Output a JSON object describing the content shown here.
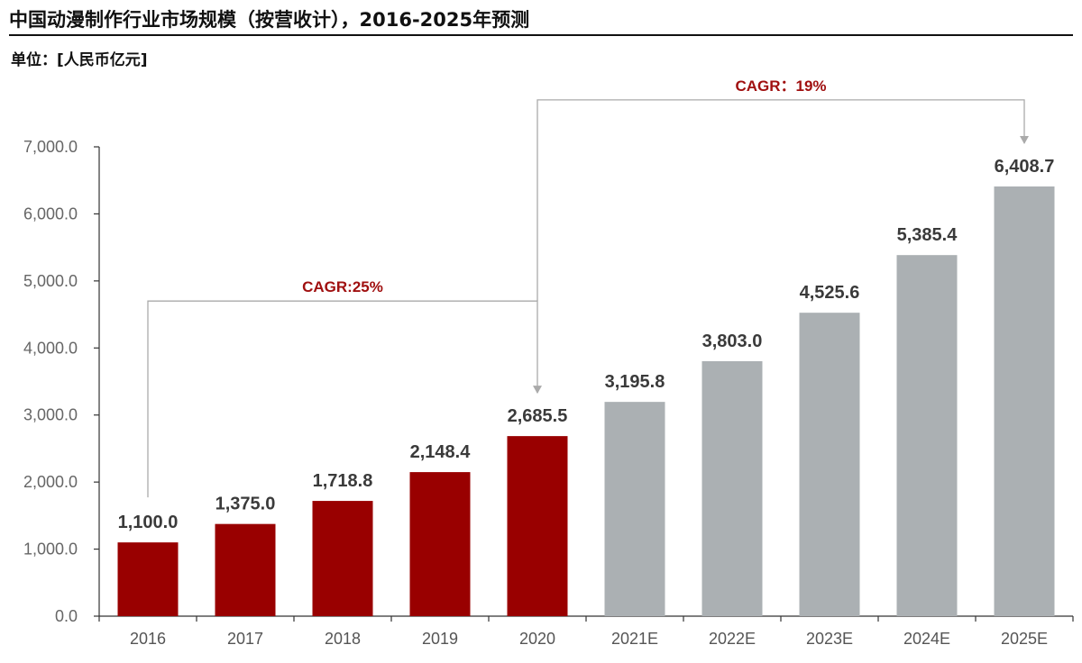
{
  "header": {
    "title": "中国动漫制作行业市场规模（按营收计），2016-2025年预测",
    "unit": "单位：[人民币亿元]"
  },
  "colors": {
    "actual": "#990000",
    "forecast": "#ABB0B3",
    "axis": "#333333",
    "bracket": "#AAAAAA",
    "cagr_text": "#A01010"
  },
  "chart_data": {
    "type": "bar",
    "categories": [
      "2016",
      "2017",
      "2018",
      "2019",
      "2020",
      "2021E",
      "2022E",
      "2023E",
      "2024E",
      "2025E"
    ],
    "values": [
      1100.0,
      1375.0,
      1718.8,
      2148.4,
      2685.5,
      3195.8,
      3803.0,
      4525.6,
      5385.4,
      6408.7
    ],
    "value_labels": [
      "1,100.0",
      "1,375.0",
      "1,718.8",
      "2,148.4",
      "2,685.5",
      "3,195.8",
      "3,803.0",
      "4,525.6",
      "5,385.4",
      "6,408.7"
    ],
    "forecast_from_index": 5,
    "ylim": [
      0,
      7000
    ],
    "yticks": [
      0,
      1000,
      2000,
      3000,
      4000,
      5000,
      6000,
      7000
    ],
    "ytick_labels": [
      "0.0",
      "1,000.0",
      "2,000.0",
      "3,000.0",
      "4,000.0",
      "5,000.0",
      "6,000.0",
      "7,000.0"
    ],
    "annotations": [
      {
        "text": "CAGR:25%",
        "from_index": 0,
        "to_index": 4,
        "level": 4700
      },
      {
        "text": "CAGR：19%",
        "from_index": 4,
        "to_index": 9,
        "level": 7700
      }
    ]
  }
}
